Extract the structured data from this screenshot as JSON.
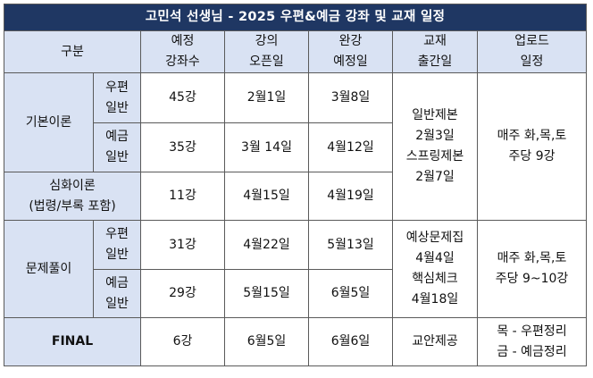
{
  "title": "고민석 선생님 - 2025 우편&예금 강좌 및 교재 일정",
  "header": {
    "category": "구분",
    "planned_count": [
      "예정",
      "강좌수"
    ],
    "open_date": [
      "강의",
      "오픈일"
    ],
    "complete_date": [
      "완강",
      "예정일"
    ],
    "book_date": [
      "교재",
      "출간일"
    ],
    "upload_schedule": [
      "업로드",
      "일정"
    ]
  },
  "rows": {
    "basic": {
      "label": "기본이론",
      "postal": {
        "sub": [
          "우편",
          "일반"
        ],
        "count": "45강",
        "open": "2월1일",
        "complete": "3월8일"
      },
      "deposit": {
        "sub": [
          "예금",
          "일반"
        ],
        "count": "35강",
        "open": "3월 14일",
        "complete": "4월12일"
      },
      "book": [
        "일반제본",
        "2월3일",
        "스프링제본",
        "2월7일"
      ],
      "upload": [
        "매주 화,목,토",
        "주당 9강"
      ]
    },
    "deep": {
      "label": [
        "심화이론",
        "(법령/부록 포함)"
      ],
      "count": "11강",
      "open": "4월15일",
      "complete": "4월19일"
    },
    "problem": {
      "label": "문제풀이",
      "postal": {
        "sub": [
          "우편",
          "일반"
        ],
        "count": "31강",
        "open": "4월22일",
        "complete": "5월13일"
      },
      "deposit": {
        "sub": [
          "예금",
          "일반"
        ],
        "count": "29강",
        "open": "5월15일",
        "complete": "6월5일"
      },
      "book": [
        "예상문제집",
        "4월4일",
        "핵심체크",
        "4월18일"
      ],
      "upload": [
        "매주 화,목,토",
        "주당 9~10강"
      ]
    },
    "final": {
      "label": "FINAL",
      "count": "6강",
      "open": "6월5일",
      "complete": "6월6일",
      "book": "교안제공",
      "upload": [
        "목 - 우편정리",
        "금 - 예금정리"
      ]
    }
  },
  "colors": {
    "title_bg": "#1f3763",
    "header_bg": "#d9e2f3",
    "border": "#5a5a5a"
  }
}
